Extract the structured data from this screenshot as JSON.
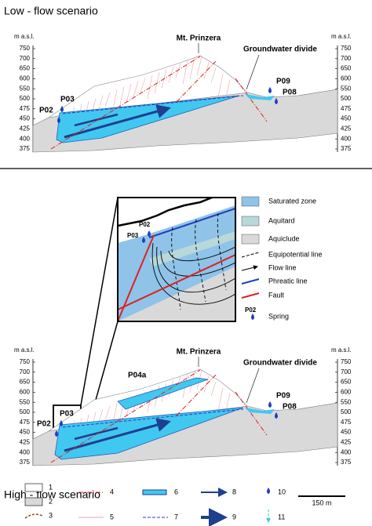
{
  "panels": [
    {
      "title": "Low - flow scenario",
      "axis_label": "m a.s.l.",
      "ticks": [
        375,
        400,
        425,
        450,
        475,
        500,
        550,
        600,
        650,
        700,
        750
      ],
      "peak": "Mt. Prinzera",
      "divide": "Groundwater divide",
      "springs": [
        "P03",
        "P02",
        "P09",
        "P08"
      ]
    },
    {
      "title": "High - flow scenario",
      "axis_label": "m a.s.l.",
      "ticks": [
        375,
        400,
        425,
        450,
        475,
        500,
        550,
        600,
        650,
        700,
        750
      ],
      "peak": "Mt. Prinzera",
      "divide": "Groundwater divide",
      "springs": [
        "P03",
        "P02",
        "P09",
        "P08",
        "P04a"
      ]
    }
  ],
  "inset": {
    "springs": [
      "P02",
      "P03"
    ],
    "legend": [
      "Saturated zone",
      "Aquitard",
      "Aquiclude",
      "Equipotential line",
      "Flow line",
      "Phreatic line",
      "Fault",
      "Spring"
    ],
    "spring_sample": "P02"
  },
  "legend": [
    "1",
    "2",
    "3",
    "4",
    "5",
    "6",
    "7",
    "8",
    "9",
    "10",
    "11"
  ],
  "scale": "150 m"
}
